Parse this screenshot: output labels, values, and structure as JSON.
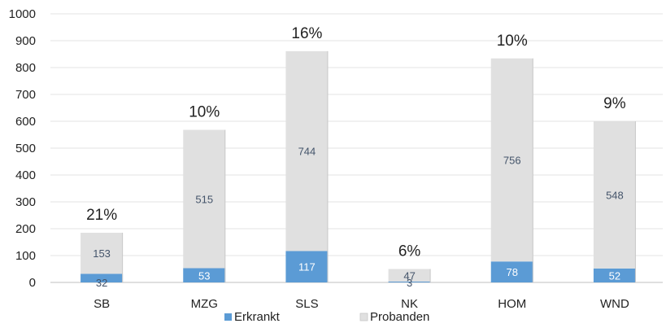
{
  "chart_data": {
    "type": "bar",
    "stacked": true,
    "categories": [
      "SB",
      "MZG",
      "SLS",
      "NK",
      "HOM",
      "WND"
    ],
    "series": [
      {
        "name": "Erkrankt",
        "values": [
          32,
          53,
          117,
          3,
          78,
          52
        ],
        "color": "#5b9bd5",
        "label_color": "#ffffff"
      },
      {
        "name": "Probanden",
        "values": [
          153,
          515,
          744,
          47,
          756,
          548
        ],
        "color": "#e0e0e0",
        "label_color": "#44546a"
      }
    ],
    "percent_labels": [
      "21%",
      "10%",
      "16%",
      "6%",
      "10%",
      "9%"
    ],
    "ylim": [
      0,
      1000
    ],
    "yticks": [
      "0",
      "100",
      "200",
      "300",
      "400",
      "500",
      "600",
      "700",
      "800",
      "900",
      "1000"
    ],
    "gridlines": true,
    "legend_position": "bottom"
  }
}
